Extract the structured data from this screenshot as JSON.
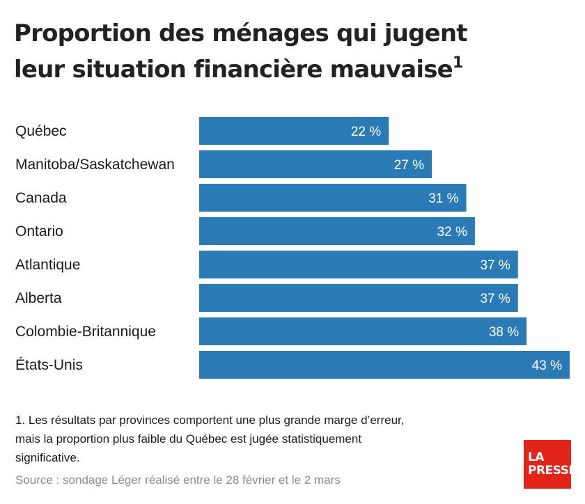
{
  "title_line1": "Proportion des ménages qui jugent",
  "title_line2": "leur situation financière mauvaise",
  "title_note_marker": "1",
  "footnote_line1": "1. Les résultats par provinces comportent une plus grande marge d’erreur,",
  "footnote_line2": "mais la proportion plus faible du Québec est jugée statistiquement",
  "footnote_line3": "significative.",
  "source": "Source : sondage Léger réalisé entre le 28 février et le 2 mars",
  "logo": {
    "line1": "LA",
    "line2": "PRESSE",
    "color": "#e3241b"
  },
  "chart_data": {
    "type": "bar",
    "orientation": "horizontal",
    "categories": [
      "Québec",
      "Manitoba/Saskatchewan",
      "Canada",
      "Ontario",
      "Atlantique",
      "Alberta",
      "Colombie-Britannique",
      "États-Unis"
    ],
    "values": [
      22,
      27,
      31,
      32,
      37,
      37,
      38,
      43
    ],
    "value_labels": [
      "22 %",
      "27 %",
      "31 %",
      "32 %",
      "37 %",
      "37 %",
      "38 %",
      "43 %"
    ],
    "xlim": [
      0,
      43
    ],
    "grid": false,
    "bar_color": "#2a7ab6"
  }
}
